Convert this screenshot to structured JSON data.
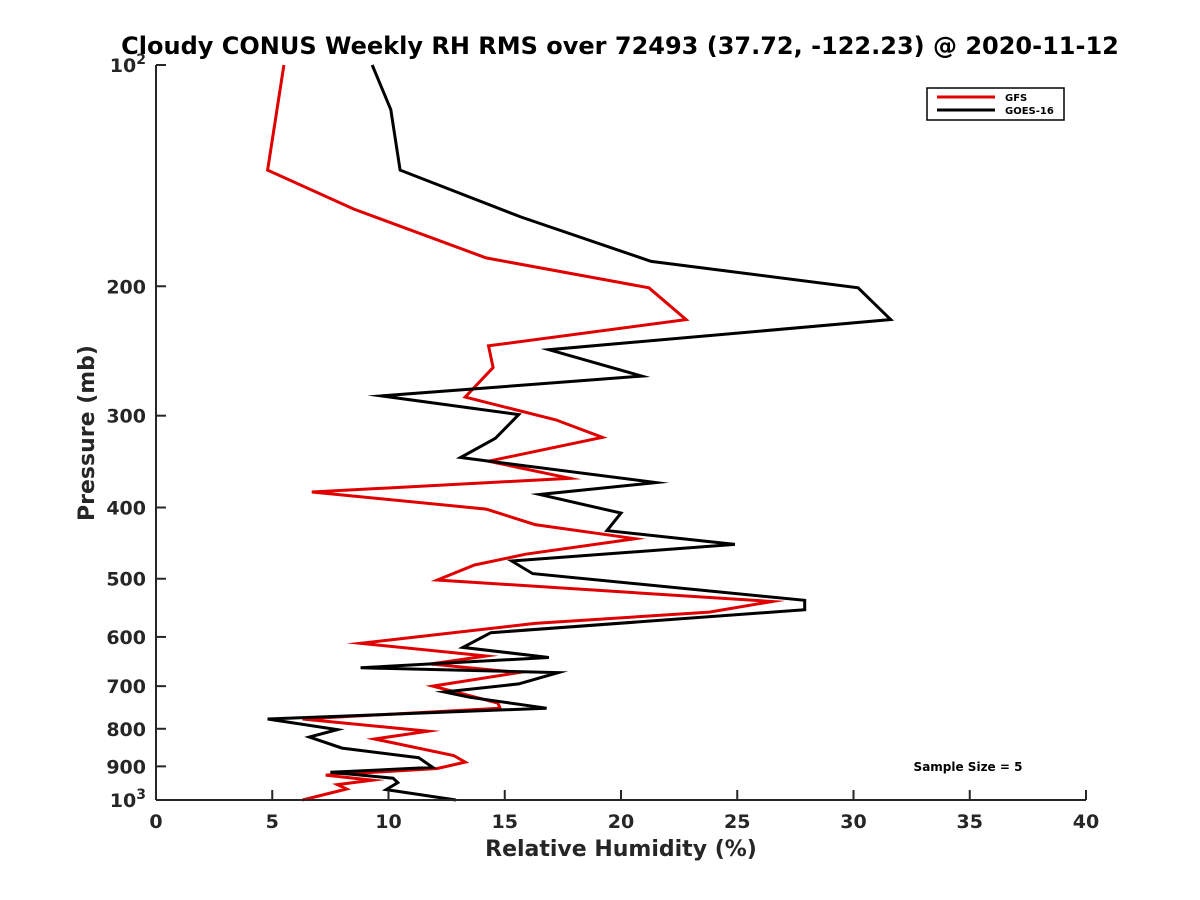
{
  "chart_data": {
    "type": "line",
    "title": "Cloudy CONUS Weekly RH RMS over 72493 (37.72, -122.23) @ 2020-11-12",
    "xlabel": "Relative Humidity (%)",
    "ylabel": "Pressure (mb)",
    "xlim": [
      0,
      40
    ],
    "ylim": [
      100,
      1000
    ],
    "y_scale": "log",
    "y_reversed": true,
    "grid": false,
    "legend_position": "top-right",
    "x_ticks": [
      "0",
      "5",
      "10",
      "15",
      "20",
      "25",
      "30",
      "35",
      "40"
    ],
    "y_ticks": [
      {
        "value": 100,
        "base": "10",
        "exp": "2"
      },
      {
        "value": 200,
        "label": "200"
      },
      {
        "value": 300,
        "label": "300"
      },
      {
        "value": 400,
        "label": "400"
      },
      {
        "value": 500,
        "label": "500"
      },
      {
        "value": 600,
        "label": "600"
      },
      {
        "value": 700,
        "label": "700"
      },
      {
        "value": 800,
        "label": "800"
      },
      {
        "value": 900,
        "label": "900"
      },
      {
        "value": 1000,
        "base": "10",
        "exp": "3"
      }
    ],
    "series": [
      {
        "name": "GFS",
        "color": "#e00000",
        "points": [
          [
            5.5,
            100
          ],
          [
            4.8,
            139
          ],
          [
            8.5,
            157
          ],
          [
            14.2,
            183
          ],
          [
            21.2,
            201
          ],
          [
            22.8,
            222
          ],
          [
            14.3,
            241
          ],
          [
            14.5,
            258
          ],
          [
            13.3,
            283
          ],
          [
            17.2,
            304
          ],
          [
            19.2,
            321
          ],
          [
            14.3,
            346
          ],
          [
            17.8,
            365
          ],
          [
            6.7,
            381
          ],
          [
            14.2,
            402
          ],
          [
            16.3,
            422
          ],
          [
            20.6,
            441
          ],
          [
            15.9,
            463
          ],
          [
            13.7,
            479
          ],
          [
            12.1,
            502
          ],
          [
            26.5,
            537
          ],
          [
            23.8,
            555
          ],
          [
            16.3,
            575
          ],
          [
            8.8,
            612
          ],
          [
            14.2,
            637
          ],
          [
            11.8,
            653
          ],
          [
            15.6,
            671
          ],
          [
            11.9,
            700
          ],
          [
            14.7,
            738
          ],
          [
            14.8,
            750
          ],
          [
            6.3,
            776
          ],
          [
            11.7,
            806
          ],
          [
            9.4,
            826
          ],
          [
            12.8,
            870
          ],
          [
            13.3,
            888
          ],
          [
            12.1,
            906
          ],
          [
            7.3,
            925
          ],
          [
            9.3,
            940
          ],
          [
            7.8,
            953
          ],
          [
            8.2,
            966
          ],
          [
            6.3,
            1000
          ]
        ]
      },
      {
        "name": "GOES-16",
        "color": "#000000",
        "points": [
          [
            9.3,
            100
          ],
          [
            10.1,
            115
          ],
          [
            10.5,
            139
          ],
          [
            15.7,
            161
          ],
          [
            21.3,
            185
          ],
          [
            30.2,
            201
          ],
          [
            31.6,
            222
          ],
          [
            16.9,
            244
          ],
          [
            20.9,
            265
          ],
          [
            9.7,
            282
          ],
          [
            15.6,
            299
          ],
          [
            14.6,
            322
          ],
          [
            13.1,
            342
          ],
          [
            21.5,
            370
          ],
          [
            16.5,
            384
          ],
          [
            20.0,
            407
          ],
          [
            19.4,
            430
          ],
          [
            24.9,
            449
          ],
          [
            15.3,
            473
          ],
          [
            16.2,
            492
          ],
          [
            27.9,
            535
          ],
          [
            27.9,
            551
          ],
          [
            14.4,
            592
          ],
          [
            13.2,
            620
          ],
          [
            16.9,
            640
          ],
          [
            8.8,
            661
          ],
          [
            17.3,
            671
          ],
          [
            15.6,
            695
          ],
          [
            12.4,
            713
          ],
          [
            13.5,
            725
          ],
          [
            16.8,
            750
          ],
          [
            4.8,
            776
          ],
          [
            7.8,
            802
          ],
          [
            6.6,
            821
          ],
          [
            8.0,
            850
          ],
          [
            11.3,
            876
          ],
          [
            11.9,
            903
          ],
          [
            7.5,
            917
          ],
          [
            10.2,
            934
          ],
          [
            10.4,
            947
          ],
          [
            9.9,
            968
          ],
          [
            12.9,
            1000
          ]
        ]
      }
    ],
    "annotation": "Sample Size = 5"
  }
}
